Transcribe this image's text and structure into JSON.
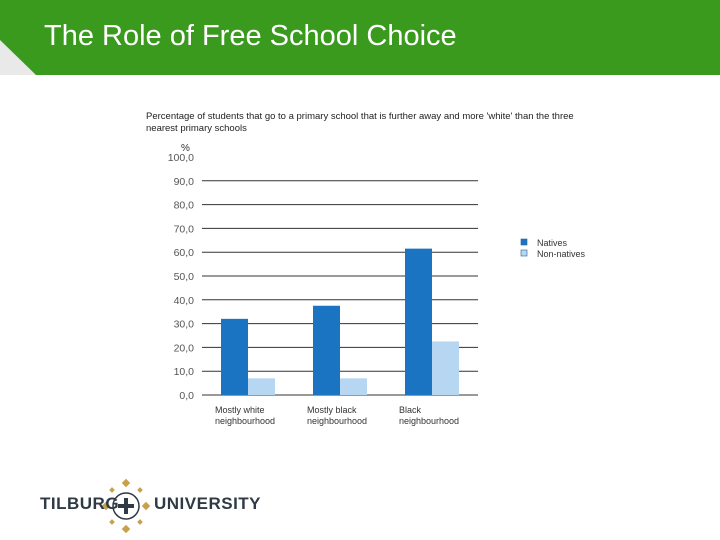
{
  "slide": {
    "title": "The Role of Free School Choice",
    "subtitle": "Percentage of students that go to a primary school that is further away and more 'white' than the three nearest primary schools",
    "header_color": "#3a9a1e",
    "header_corner_color": "#e9e9e9"
  },
  "chart_data": {
    "type": "bar",
    "title": "",
    "unit_label": "%",
    "categories": [
      "Mostly white\nneighbourhood",
      "Mostly black\nneighbourhood",
      "Black\nneighbourhood"
    ],
    "series": [
      {
        "name": "Natives",
        "color": "#1a74c2",
        "values": [
          32,
          37.5,
          61.5
        ]
      },
      {
        "name": "Non-natives",
        "color": "#b6d6f2",
        "values": [
          7,
          7,
          22.5
        ]
      }
    ],
    "ylim": [
      0,
      100
    ],
    "yticks": [
      "0,0",
      "10,0",
      "20,0",
      "30,0",
      "40,0",
      "50,0",
      "60,0",
      "70,0",
      "80,0",
      "90,0",
      "100,0"
    ],
    "grid": true,
    "legend_position": "right"
  },
  "logo": {
    "left_word": "TILBURG",
    "right_word": "UNIVERSITY",
    "gold": "#c8a24a",
    "dark": "#2f3a45"
  }
}
